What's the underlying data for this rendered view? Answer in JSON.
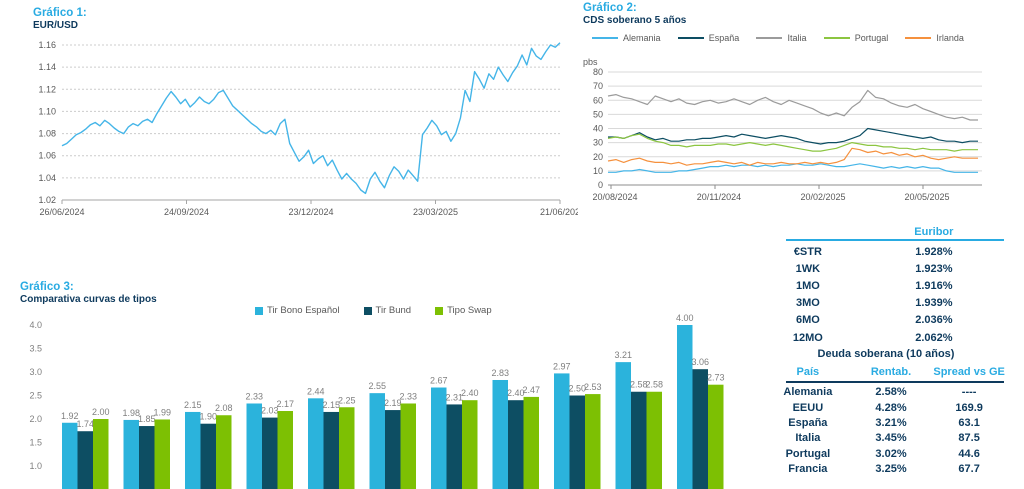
{
  "colors": {
    "accent_cyan": "#29ABE2",
    "navy_text": "#0E3A5D",
    "line_blue": "#45B5E8",
    "dark_navy_series": "#0D4E63",
    "green_series": "#7DC003",
    "cds_green": "#8CC540",
    "orange_series": "#F5913E",
    "gray_series": "#9B9B9B",
    "grid_gray": "#CCCCCC",
    "axis_text": "#595959",
    "value_label": "#7F7F7F"
  },
  "chart_data": [
    {
      "type": "line",
      "heading": "Gráfico 1:",
      "title": "EUR/USD",
      "ylim": [
        1.02,
        1.16
      ],
      "y_step": 0.02,
      "grid": "dashed-horizontal",
      "legend_position": "none",
      "x_tick_labels": [
        "26/06/2024",
        "24/09/2024",
        "23/12/2024",
        "23/03/2025",
        "21/06/202"
      ],
      "series": [
        {
          "name": "EUR/USD",
          "color": "#45B5E8",
          "values": [
            1.069,
            1.071,
            1.075,
            1.079,
            1.081,
            1.084,
            1.088,
            1.09,
            1.087,
            1.092,
            1.089,
            1.085,
            1.082,
            1.08,
            1.086,
            1.089,
            1.087,
            1.091,
            1.093,
            1.09,
            1.098,
            1.105,
            1.112,
            1.118,
            1.113,
            1.107,
            1.111,
            1.104,
            1.108,
            1.113,
            1.109,
            1.107,
            1.111,
            1.117,
            1.119,
            1.112,
            1.105,
            1.101,
            1.097,
            1.093,
            1.089,
            1.086,
            1.082,
            1.08,
            1.083,
            1.079,
            1.089,
            1.093,
            1.071,
            1.063,
            1.055,
            1.059,
            1.065,
            1.053,
            1.057,
            1.06,
            1.051,
            1.056,
            1.047,
            1.039,
            1.044,
            1.039,
            1.035,
            1.029,
            1.026,
            1.039,
            1.045,
            1.037,
            1.031,
            1.042,
            1.05,
            1.046,
            1.039,
            1.047,
            1.042,
            1.037,
            1.079,
            1.085,
            1.092,
            1.087,
            1.079,
            1.082,
            1.073,
            1.08,
            1.094,
            1.119,
            1.109,
            1.136,
            1.129,
            1.121,
            1.134,
            1.129,
            1.14,
            1.133,
            1.127,
            1.135,
            1.141,
            1.151,
            1.142,
            1.157,
            1.15,
            1.147,
            1.154,
            1.16,
            1.158,
            1.162
          ]
        }
      ]
    },
    {
      "type": "line",
      "heading": "Gráfico 2:",
      "title": "CDS soberano 5 años",
      "unit": "pbs",
      "ylim": [
        0,
        80
      ],
      "y_step": 10,
      "grid": "solid-horizontal",
      "legend_position": "top",
      "x_tick_labels": [
        "20/08/2024",
        "20/11/2024",
        "20/02/2025",
        "20/05/2025"
      ],
      "series": [
        {
          "name": "Alemania",
          "color": "#45B5E8",
          "values": [
            9,
            9,
            10,
            10,
            11,
            10,
            9,
            9,
            9,
            10,
            10,
            11,
            12,
            13,
            13,
            14,
            13,
            14,
            14,
            13,
            14,
            13,
            14,
            14,
            15,
            14,
            14,
            15,
            14,
            13,
            13,
            14,
            15,
            14,
            13,
            12,
            13,
            12,
            13,
            12,
            13,
            12,
            12,
            10,
            9,
            9,
            9,
            9
          ]
        },
        {
          "name": "España",
          "color": "#0D4E63",
          "values": [
            34,
            34,
            33,
            35,
            37,
            34,
            32,
            33,
            31,
            31,
            32,
            32,
            33,
            33,
            34,
            35,
            34,
            36,
            35,
            34,
            33,
            34,
            35,
            34,
            33,
            31,
            30,
            29,
            30,
            30,
            31,
            33,
            35,
            40,
            39,
            38,
            37,
            36,
            35,
            34,
            33,
            34,
            32,
            31,
            31,
            30,
            31,
            31
          ]
        },
        {
          "name": "Italia",
          "color": "#9B9B9B",
          "values": [
            63,
            64,
            62,
            61,
            59,
            57,
            63,
            61,
            59,
            61,
            58,
            57,
            59,
            60,
            58,
            59,
            61,
            59,
            57,
            60,
            62,
            59,
            57,
            60,
            58,
            56,
            54,
            51,
            49,
            51,
            49,
            55,
            59,
            67,
            62,
            61,
            58,
            56,
            55,
            57,
            54,
            52,
            50,
            48,
            47,
            48,
            46,
            46
          ]
        },
        {
          "name": "Portugal",
          "color": "#8CC540",
          "values": [
            33,
            34,
            33,
            35,
            36,
            33,
            31,
            30,
            28,
            28,
            27,
            28,
            28,
            28,
            29,
            29,
            28,
            29,
            30,
            29,
            28,
            29,
            28,
            27,
            26,
            25,
            24,
            24,
            25,
            26,
            28,
            30,
            29,
            28,
            28,
            27,
            27,
            26,
            26,
            25,
            26,
            25,
            25,
            25,
            24,
            25,
            25,
            25
          ]
        },
        {
          "name": "Irlanda",
          "color": "#F5913E",
          "values": [
            17,
            18,
            16,
            18,
            19,
            17,
            16,
            16,
            15,
            16,
            14,
            15,
            15,
            16,
            17,
            16,
            15,
            16,
            14,
            16,
            15,
            15,
            16,
            15,
            15,
            16,
            15,
            16,
            15,
            16,
            18,
            26,
            25,
            23,
            24,
            22,
            23,
            21,
            22,
            20,
            21,
            19,
            18,
            19,
            20,
            19,
            19,
            19
          ]
        }
      ]
    },
    {
      "type": "bar",
      "heading": "Gráfico 3:",
      "title": "Comparativa curvas de tipos",
      "ylim": [
        0.5,
        4.0
      ],
      "y_step": 0.5,
      "y_tick_labels": [
        "4.0",
        "3.5",
        "3.0",
        "2.5",
        "2.0",
        "1.5",
        "1.0"
      ],
      "grid": "none",
      "legend_position": "top",
      "value_labels": true,
      "x_axis_note": "category labels cut off at bottom of screenshot",
      "categories": [
        "",
        "",
        "",
        "",
        "",
        "",
        "",
        "",
        "",
        "",
        ""
      ],
      "series": [
        {
          "name": "Tir Bono Español",
          "color": "#2BB3DC",
          "values": [
            1.92,
            1.98,
            2.15,
            2.33,
            2.44,
            2.55,
            2.67,
            2.83,
            2.97,
            3.21,
            4.0
          ]
        },
        {
          "name": "Tir Bund",
          "color": "#0D4E63",
          "values": [
            1.74,
            1.85,
            1.9,
            2.03,
            2.15,
            2.19,
            2.31,
            2.4,
            2.5,
            2.58,
            3.06
          ]
        },
        {
          "name": "Tipo Swap",
          "color": "#7DC003",
          "values": [
            2.0,
            1.99,
            2.08,
            2.17,
            2.25,
            2.33,
            2.4,
            2.47,
            2.53,
            2.58,
            2.73
          ]
        }
      ]
    },
    {
      "type": "table",
      "title": "Euribor",
      "rows": [
        [
          "€STR",
          "1.928%"
        ],
        [
          "1WK",
          "1.923%"
        ],
        [
          "1MO",
          "1.916%"
        ],
        [
          "3MO",
          "1.939%"
        ],
        [
          "6MO",
          "2.036%"
        ],
        [
          "12MO",
          "2.062%"
        ]
      ]
    },
    {
      "type": "table",
      "title": "Deuda soberana (10 años)",
      "columns": [
        "País",
        "Rentab.",
        "Spread vs GE"
      ],
      "rows": [
        [
          "Alemania",
          "2.58%",
          "----"
        ],
        [
          "EEUU",
          "4.28%",
          "169.9"
        ],
        [
          "España",
          "3.21%",
          "63.1"
        ],
        [
          "Italia",
          "3.45%",
          "87.5"
        ],
        [
          "Portugal",
          "3.02%",
          "44.6"
        ],
        [
          "Francia",
          "3.25%",
          "67.7"
        ]
      ]
    }
  ]
}
